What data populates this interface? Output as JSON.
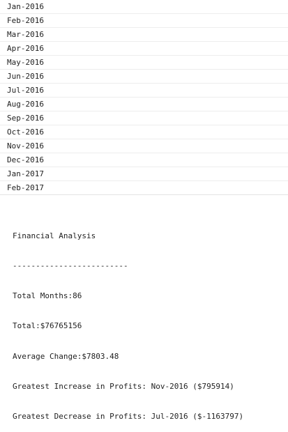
{
  "months": [
    "Jan-2016",
    "Feb-2016",
    "Mar-2016",
    "Apr-2016",
    "May-2016",
    "Jun-2016",
    "Jul-2016",
    "Aug-2016",
    "Sep-2016",
    "Oct-2016",
    "Nov-2016",
    "Dec-2016",
    "Jan-2017",
    "Feb-2017"
  ],
  "analysis": {
    "title": "Financial Analysis",
    "divider": "-------------------------",
    "total_months": "Total Months:86",
    "total": "Total:$76765156",
    "average_change": "Average Change:$7803.48",
    "greatest_increase": "Greatest Increase in Profits: Nov-2016 ($795914)",
    "greatest_decrease": "Greatest Decrease in Profits: Jul-2016 ($-1163797)"
  }
}
